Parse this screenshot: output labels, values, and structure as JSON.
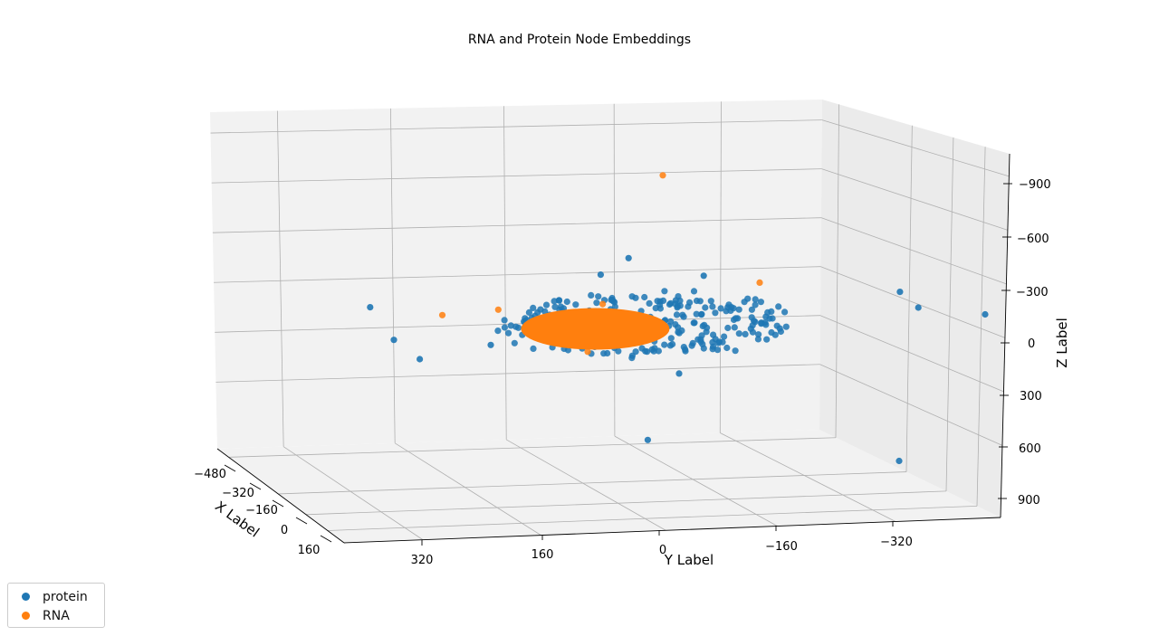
{
  "chart_data": {
    "type": "scatter",
    "title": "RNA and Protein Node Embeddings",
    "xlabel": "X Label",
    "ylabel": "Y Label",
    "zlabel": "Z Label",
    "x_ticks": [
      "−480",
      "−320",
      "−160",
      "0",
      "160"
    ],
    "y_ticks": [
      "320",
      "160",
      "0",
      "−160",
      "−320"
    ],
    "z_ticks": [
      "−900",
      "−600",
      "−300",
      "0",
      "300",
      "600",
      "900"
    ],
    "grid": true,
    "legend_position": "bottom-left",
    "series": [
      {
        "name": "protein",
        "color": "#1f77b4",
        "description_points": [
          {
            "x": -480,
            "y": 320,
            "z": -350
          },
          {
            "x": -400,
            "y": 300,
            "z": -140
          },
          {
            "x": -300,
            "y": 280,
            "z": 0
          },
          {
            "x": -200,
            "y": 200,
            "z": -50
          },
          {
            "x": 100,
            "y": 60,
            "z": -450
          },
          {
            "x": 120,
            "y": 100,
            "z": -350
          },
          {
            "x": 0,
            "y": 20,
            "z": 550
          },
          {
            "x": 100,
            "y": -40,
            "z": -350
          },
          {
            "x": 150,
            "y": 0,
            "z": 220
          },
          {
            "x": -100,
            "y": -330,
            "z": -320
          },
          {
            "x": 0,
            "y": -340,
            "z": -200
          },
          {
            "x": 200,
            "y": -400,
            "z": -100
          },
          {
            "x": 100,
            "y": -300,
            "z": 700
          }
        ],
        "cluster": {
          "center": {
            "x": 0,
            "y": 20,
            "z": -100
          },
          "radius_y": 160,
          "count": 260
        }
      },
      {
        "name": "RNA",
        "color": "#ff7f0e",
        "description_points": [
          {
            "x": 0,
            "y": 0,
            "z": -950
          },
          {
            "x": -300,
            "y": 250,
            "z": -250
          },
          {
            "x": -200,
            "y": 190,
            "z": -250
          },
          {
            "x": 0,
            "y": 80,
            "z": -220
          },
          {
            "x": 200,
            "y": -100,
            "z": -280
          },
          {
            "x": 0,
            "y": 100,
            "z": 50
          }
        ],
        "cluster": {
          "center": {
            "x": 0,
            "y": 20,
            "z": -100
          },
          "radius_y": 80,
          "dense": true
        }
      }
    ]
  },
  "legend": {
    "items": [
      {
        "label": "protein",
        "color": "#1f77b4"
      },
      {
        "label": "RNA",
        "color": "#ff7f0e"
      }
    ]
  }
}
